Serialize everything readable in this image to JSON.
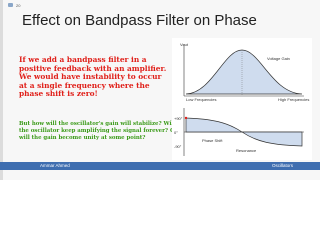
{
  "slide_number": "20",
  "title": "Effect on Bandpass Filter on Phase",
  "body": {
    "red_text": "If we add a bandpass filter in a positive feedback with an amplifier. We would have instability to occur at a single frequency where the phase shift is zero!",
    "green_text": "But how will the oscillator's gain will stabilize? Will the oscillator keep amplifying the signal forever? Or will the gain become unity at some point?"
  },
  "diagram": {
    "gain": {
      "y_label": "Vout",
      "curve_label": "Voltage Gain",
      "low": "Low Frequencies",
      "high": "High Frequencies"
    },
    "phase": {
      "plus": "+90°",
      "zero": "0°",
      "minus": "-90°",
      "curve_label": "Phase Shift",
      "center_label": "Resonance"
    }
  },
  "footer": {
    "author": "Ammar Ahmed",
    "topic": "Oscillators"
  }
}
